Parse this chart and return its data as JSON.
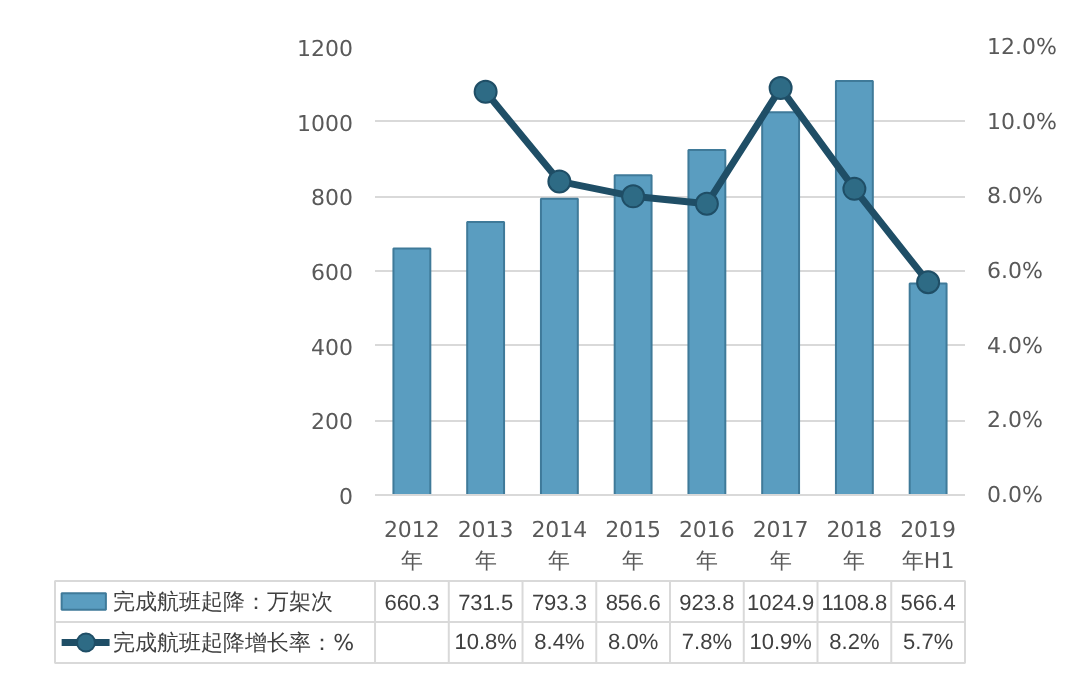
{
  "chart_data": {
    "type": "bar",
    "categories": [
      "2012年",
      "2013年",
      "2014年",
      "2015年",
      "2016年",
      "2017年",
      "2018年",
      "2019年H1"
    ],
    "series": [
      {
        "name": "完成航班起降：万架次",
        "color": "#5a9dc0",
        "values": [
          660.3,
          731.5,
          793.3,
          856.6,
          923.8,
          1024.9,
          1108.8,
          566.4
        ],
        "value_labels": [
          "660.3",
          "731.5",
          "793.3",
          "856.6",
          "923.8",
          "1024.9",
          "1108.8",
          "566.4"
        ]
      },
      {
        "name": "完成航班起降增长率：%",
        "type": "line",
        "axis": "y2",
        "color": "#1f4e66",
        "values": [
          null,
          10.8,
          8.4,
          8.0,
          7.8,
          10.9,
          8.2,
          5.7
        ],
        "value_labels": [
          null,
          "10.8%",
          "8.4%",
          "8.0%",
          "7.8%",
          "10.9%",
          "8.2%",
          "5.7%"
        ]
      }
    ],
    "ylim": [
      0,
      1200
    ],
    "yticks": [
      0,
      200,
      400,
      600,
      800,
      1000,
      1200
    ],
    "y2lim": [
      0,
      12
    ],
    "y2ticks": [
      {
        "value": 0,
        "label": "0.0%"
      },
      {
        "value": 2,
        "label": "2.0%"
      },
      {
        "value": 4,
        "label": "4.0%"
      },
      {
        "value": 6,
        "label": "6.0%"
      },
      {
        "value": 8,
        "label": "8.0%"
      },
      {
        "value": 10,
        "label": "10.0%"
      },
      {
        "value": 12,
        "label": "12.0%"
      }
    ],
    "grid": "y",
    "legend": "bottom",
    "marker": "circle",
    "line_style": "solid"
  }
}
